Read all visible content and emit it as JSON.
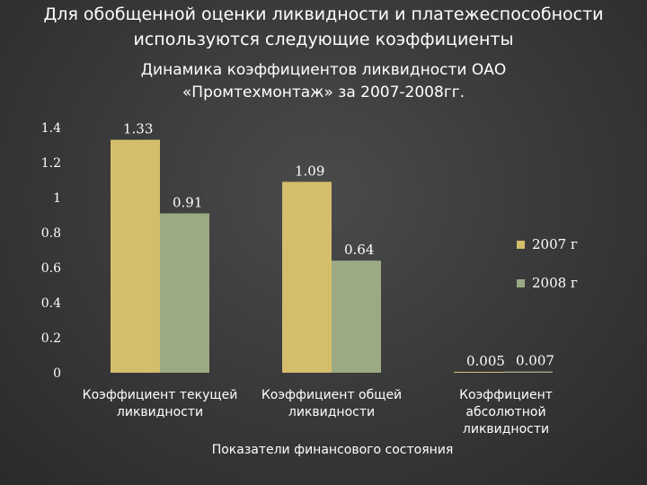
{
  "slide": {
    "title_lines": [
      "Для обобщенной оценки ликвидности и  платежеспособности",
      "используются следующие коэффициенты"
    ]
  },
  "chart_data": {
    "type": "bar",
    "title_lines": [
      "Динамика коэффициентов ликвидности ОАО",
      "«Промтехмонтаж» за 2007-2008гг."
    ],
    "categories": [
      [
        "Коэффициент текущей",
        "ликвидности"
      ],
      [
        "Коэффициент общей",
        "ликвидности"
      ],
      [
        "Коэффициент",
        "абсолютной",
        "ликвидности"
      ]
    ],
    "series": [
      {
        "name": "2007 г",
        "values": [
          1.33,
          1.09,
          0.005
        ],
        "labels": [
          "1.33",
          "1.09",
          "0.005"
        ],
        "color": "#d4be6c"
      },
      {
        "name": "2008 г",
        "values": [
          0.91,
          0.64,
          0.007
        ],
        "labels": [
          "0.91",
          "0.64",
          "0.007"
        ],
        "color": "#9caa84"
      }
    ],
    "yticks": [
      "0",
      "0.2",
      "0.4",
      "0.6",
      "0.8",
      "1",
      "1.2",
      "1.4"
    ],
    "ylim": [
      0,
      1.4
    ],
    "xlabel": "Показатели финансового состояния",
    "ylabel": "",
    "grid": false,
    "legend": "right"
  }
}
